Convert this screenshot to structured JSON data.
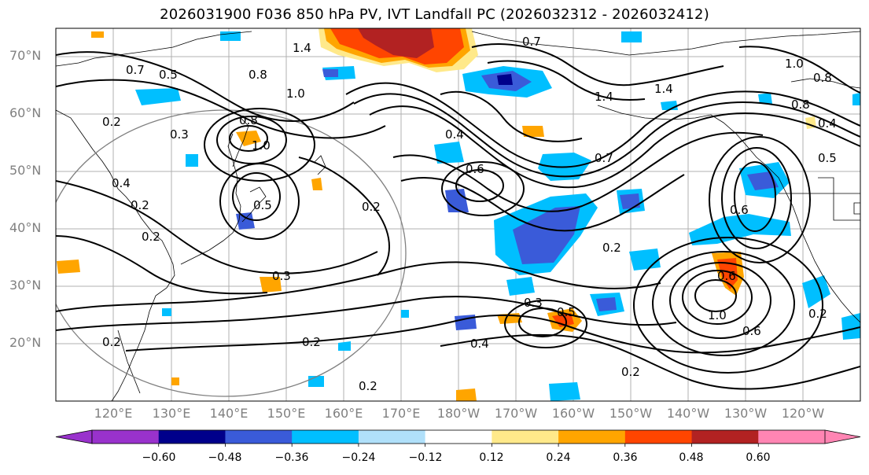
{
  "title": "2026031900 F036 850 hPa PV, IVT Landfall PC (2026032312 - 2026032412)",
  "lat_labels": [
    "70°N",
    "60°N",
    "50°N",
    "40°N",
    "30°N",
    "20°N"
  ],
  "lon_labels": [
    "120°E",
    "130°E",
    "140°E",
    "150°E",
    "160°E",
    "170°E",
    "180°W",
    "170°W",
    "160°W",
    "150°W",
    "140°W",
    "130°W",
    "120°W"
  ],
  "contour_labels": [
    "0.7",
    "0.5",
    "1.4",
    "1.0",
    "0.8",
    "0.7",
    "0.6",
    "0.8",
    "0.5",
    "0.4",
    "0.2",
    "0.4",
    "0.2",
    "0.3",
    "0.4",
    "0.6",
    "0.5",
    "0.7",
    "1.4",
    "1.4",
    "1.0",
    "0.8",
    "0.2",
    "0.6",
    "0.2",
    "0.3",
    "0.5",
    "0.4",
    "0.2",
    "1.0",
    "0.6",
    "0.2",
    "0.2",
    "0.2",
    "0.2",
    "0.2",
    "0.3",
    "1.0",
    "0.8"
  ],
  "colorbar": {
    "ticks": [
      "−0.60",
      "−0.48",
      "−0.36",
      "−0.24",
      "−0.12",
      "0.12",
      "0.24",
      "0.36",
      "0.48",
      "0.60"
    ],
    "colors": [
      "#9932cc",
      "#00008b",
      "#3a5bd9",
      "#00bfff",
      "#b0e0fa",
      "#ffffff",
      "#ffe98a",
      "#ffa500",
      "#ff4500",
      "#b22222",
      "#ff85b3"
    ]
  },
  "shading_colors": {
    "dark_blue": "#3a5bd9",
    "cyan": "#00bfff",
    "light_blue": "#b0e0fa",
    "light_yellow": "#ffe98a",
    "orange": "#ffa500",
    "red_orange": "#ff4500",
    "dark_red": "#b22222"
  }
}
